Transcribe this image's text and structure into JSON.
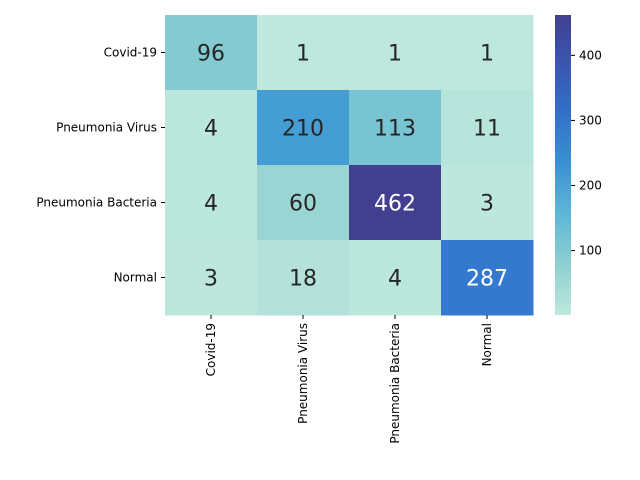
{
  "chart_data": {
    "type": "heatmap",
    "rows": [
      "Covid-19",
      "Pneumonia Virus",
      "Pneumonia Bacteria",
      "Normal"
    ],
    "columns": [
      "Covid-19",
      "Pneumonia Virus",
      "Pneumonia Bacteria",
      "Normal"
    ],
    "values": [
      [
        96,
        1,
        1,
        1
      ],
      [
        4,
        210,
        113,
        11
      ],
      [
        4,
        60,
        462,
        3
      ],
      [
        3,
        18,
        4,
        287
      ]
    ],
    "annotations": true,
    "colorbar": {
      "range": [
        1,
        462
      ],
      "ticks": [
        100,
        200,
        300,
        400
      ],
      "tick_labels": [
        "100",
        "200",
        "300",
        "400"
      ]
    },
    "colormap_stops": [
      "#bee8dd",
      "#8fcfd0",
      "#5fb8d6",
      "#3a92d2",
      "#3370cc",
      "#3a56b3",
      "#433f8f"
    ],
    "title": "",
    "xlabel": "",
    "ylabel": ""
  }
}
